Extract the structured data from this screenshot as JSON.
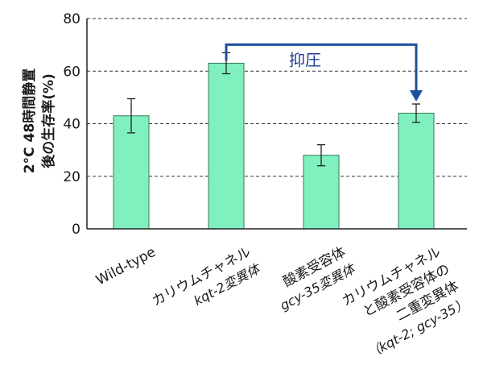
{
  "chart_data": {
    "type": "bar",
    "ylabel_lines": [
      "2°C 48時間静置",
      "後の生存率(%)"
    ],
    "ylim": [
      0,
      80
    ],
    "yticks": [
      "0",
      "20",
      "40",
      "60",
      "80"
    ],
    "grid": true,
    "categories": [
      {
        "lines": [
          {
            "text": "Wild-type",
            "italic": false
          }
        ]
      },
      {
        "lines": [
          {
            "text": "カリウムチャネル",
            "italic": false
          },
          {
            "text": "kqt-2変異体",
            "italic": true
          }
        ]
      },
      {
        "lines": [
          {
            "text": "酸素受容体",
            "italic": false
          },
          {
            "text": "gcy-35変異体",
            "italic": true
          }
        ]
      },
      {
        "lines": [
          {
            "text": "カリウムチャネル",
            "italic": false
          },
          {
            "text": "と酸素受容体の",
            "italic": false
          },
          {
            "text": "二重変異体",
            "italic": false
          },
          {
            "text": "（kqt-2; gcy-35）",
            "italic": true
          }
        ]
      }
    ],
    "values": [
      43,
      63,
      28,
      44
    ],
    "errors": [
      6.5,
      4,
      4,
      3.5
    ],
    "bar_color": "#7ff0be",
    "annotation": {
      "text": "抑圧",
      "from_bar": 1,
      "to_bar": 3,
      "color": "#1f4f9f"
    }
  }
}
